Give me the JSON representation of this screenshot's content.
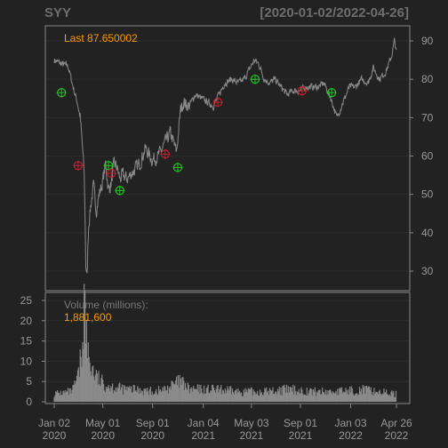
{
  "header": {
    "symbol": "SYY",
    "date_range": "[2020-01-02/2022-04-26]"
  },
  "price_panel": {
    "last_label": "Last 87.650002"
  },
  "volume_panel": {
    "label": "Volume (millions):",
    "value": "1,881,600"
  },
  "colors": {
    "background": "#222222",
    "panel_border": "#888888",
    "grid": "#2c2c2c",
    "price_line": "#8a8a8a",
    "volume_bars": "#8a8a8a",
    "axis_text": "#999999",
    "title_text": "#6e6e6e",
    "highlight": "#ff9900",
    "buy_marker": "#22c322",
    "sell_marker": "#c8202a"
  },
  "chart_data": [
    {
      "type": "line",
      "title": "SYY",
      "xlabel": "",
      "ylabel": "",
      "ylim": [
        20,
        92
      ],
      "y_ticks": [
        30,
        40,
        50,
        60,
        70,
        80,
        90
      ],
      "x_ticks": [
        {
          "date": "2020-01-02",
          "label": [
            "Jan 02",
            "2020"
          ]
        },
        {
          "date": "2020-05-01",
          "label": [
            "May 01",
            "2020"
          ]
        },
        {
          "date": "2020-09-01",
          "label": [
            "Sep 01",
            "2020"
          ]
        },
        {
          "date": "2021-01-04",
          "label": [
            "Jan 04",
            "2021"
          ]
        },
        {
          "date": "2021-05-03",
          "label": [
            "May 03",
            "2021"
          ]
        },
        {
          "date": "2021-09-01",
          "label": [
            "Sep 01",
            "2021"
          ]
        },
        {
          "date": "2022-01-03",
          "label": [
            "Jan 03",
            "2022"
          ]
        },
        {
          "date": "2022-04-26",
          "label": [
            "Apr 26",
            "2022"
          ]
        }
      ],
      "series": [
        {
          "x": [
            "2020-01-02",
            "2020-01-20",
            "2020-02-05",
            "2020-02-20",
            "2020-02-28",
            "2020-03-06",
            "2020-03-12",
            "2020-03-16",
            "2020-03-18",
            "2020-03-20",
            "2020-03-23",
            "2020-03-25",
            "2020-03-27",
            "2020-04-01",
            "2020-04-08",
            "2020-04-15",
            "2020-04-22",
            "2020-04-30",
            "2020-05-08",
            "2020-05-15",
            "2020-05-22",
            "2020-05-29",
            "2020-06-05",
            "2020-06-12",
            "2020-06-19",
            "2020-06-30",
            "2020-07-15",
            "2020-07-31",
            "2020-08-14",
            "2020-08-31",
            "2020-09-15",
            "2020-09-30",
            "2020-10-15",
            "2020-10-30",
            "2020-11-09",
            "2020-11-16",
            "2020-11-30",
            "2020-12-15",
            "2020-12-31",
            "2021-01-15",
            "2021-01-29",
            "2021-02-12",
            "2021-02-26",
            "2021-03-15",
            "2021-03-31",
            "2021-04-15",
            "2021-04-30",
            "2021-05-10",
            "2021-05-21",
            "2021-06-04",
            "2021-06-18",
            "2021-06-30",
            "2021-07-15",
            "2021-07-30",
            "2021-08-13",
            "2021-08-31",
            "2021-09-15",
            "2021-09-30",
            "2021-10-15",
            "2021-10-29",
            "2021-11-15",
            "2021-11-30",
            "2021-12-15",
            "2021-12-31",
            "2022-01-14",
            "2022-01-31",
            "2022-02-15",
            "2022-02-28",
            "2022-03-15",
            "2022-03-31",
            "2022-04-14",
            "2022-04-21",
            "2022-04-26"
          ],
          "y": [
            85,
            84,
            83.5,
            77,
            74,
            70,
            62,
            55,
            45,
            32,
            28,
            36,
            42,
            47,
            52,
            46,
            50,
            53,
            58,
            51,
            53,
            58,
            57,
            54,
            55,
            54,
            56,
            58,
            62,
            59,
            60,
            63,
            66,
            61,
            72,
            74,
            73,
            76,
            75,
            74,
            73,
            76,
            79,
            80,
            79,
            80,
            83,
            85,
            84,
            80,
            79,
            80,
            78,
            76,
            77,
            77,
            78,
            78,
            78,
            79,
            75,
            70,
            74,
            78,
            78,
            80,
            79,
            83,
            80,
            82,
            86,
            90,
            87.65
          ]
        }
      ],
      "signals": [
        {
          "date": "2020-01-20",
          "price": 76.5,
          "kind": "buy"
        },
        {
          "date": "2020-03-01",
          "price": 57.5,
          "kind": "sell"
        },
        {
          "date": "2020-05-15",
          "price": 57.5,
          "kind": "buy"
        },
        {
          "date": "2020-05-22",
          "price": 55.5,
          "kind": "sell"
        },
        {
          "date": "2020-06-12",
          "price": 51,
          "kind": "buy"
        },
        {
          "date": "2020-10-02",
          "price": 60.5,
          "kind": "sell"
        },
        {
          "date": "2020-11-02",
          "price": 57,
          "kind": "buy"
        },
        {
          "date": "2021-02-09",
          "price": 74,
          "kind": "sell"
        },
        {
          "date": "2021-05-12",
          "price": 80,
          "kind": "buy"
        },
        {
          "date": "2021-09-05",
          "price": 77,
          "kind": "sell"
        },
        {
          "date": "2021-11-17",
          "price": 76.5,
          "kind": "buy"
        }
      ]
    },
    {
      "type": "bar",
      "title": "Volume (millions):",
      "ylim": [
        0,
        27
      ],
      "y_ticks": [
        0,
        5,
        10,
        15,
        20,
        25
      ],
      "series": [
        {
          "x": [
            "2020-01-02",
            "2020-02-15",
            "2020-03-01",
            "2020-03-10",
            "2020-03-16",
            "2020-03-20",
            "2020-03-25",
            "2020-04-01",
            "2020-04-15",
            "2020-05-01",
            "2020-06-01",
            "2020-07-01",
            "2020-08-01",
            "2020-09-01",
            "2020-10-01",
            "2020-11-09",
            "2020-12-01",
            "2021-02-01",
            "2021-04-01",
            "2021-06-01",
            "2021-08-01",
            "2021-10-01",
            "2021-12-01",
            "2022-02-01",
            "2022-04-26"
          ],
          "y": [
            2,
            2.5,
            6,
            12,
            26,
            18,
            12,
            9,
            6,
            4.5,
            3.5,
            3,
            3,
            2.5,
            3,
            5,
            3,
            3,
            2.5,
            2.5,
            3,
            2.5,
            2.5,
            3,
            1.88
          ]
        }
      ]
    }
  ]
}
